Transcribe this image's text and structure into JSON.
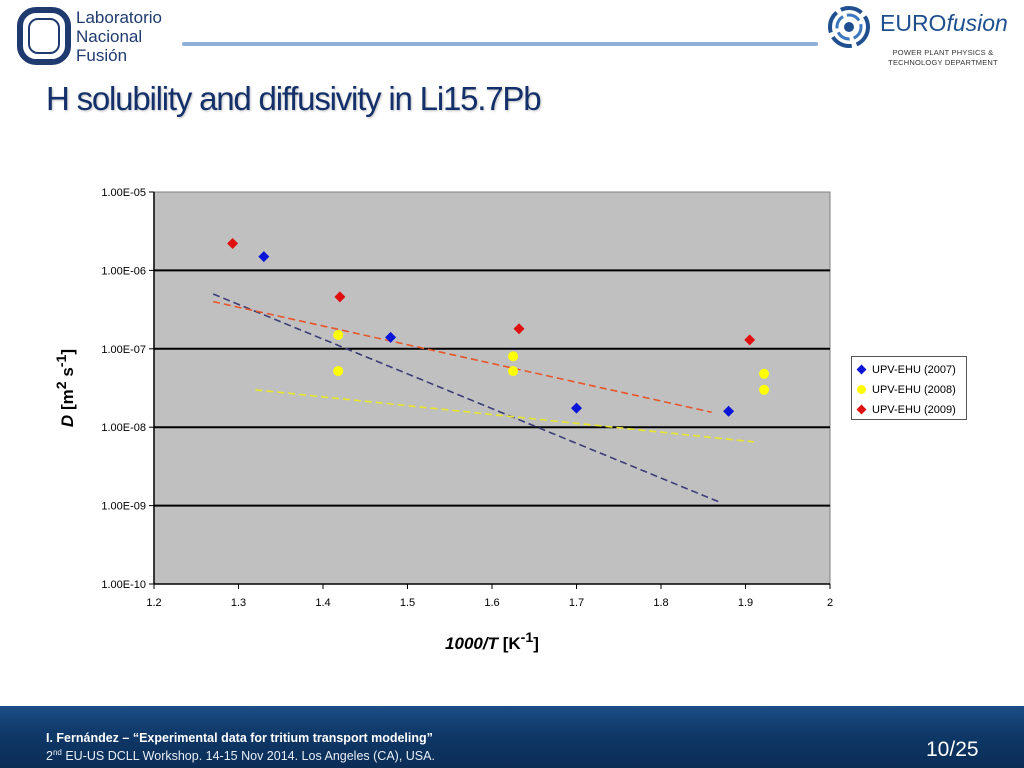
{
  "header": {
    "left_logo": {
      "line1": "Laboratorio",
      "line2": "Nacional",
      "line3": "Fusión"
    },
    "right_logo": {
      "brand_euro": "EURO",
      "brand_fusion": "fusion",
      "dept_line1": "POWER PLANT PHYSICS &",
      "dept_line2": "TECHNOLOGY DEPARTMENT"
    }
  },
  "slide": {
    "title": "H solubility and diffusivity in Li15.7Pb"
  },
  "chart_data": {
    "type": "scatter",
    "title": "",
    "xlabel_var": "1000/T",
    "xlabel_unit": "[K",
    "xlabel_exp": "-1",
    "xlabel_close": "]",
    "ylabel_var": "D",
    "ylabel_unit_open": "[m",
    "ylabel_exp1": "2",
    "ylabel_mid": " s",
    "ylabel_exp2": "-1",
    "ylabel_close": "]",
    "xlim": [
      1.2,
      2.0
    ],
    "ylim": [
      1e-10,
      1e-05
    ],
    "yscale": "log",
    "grid": "horizontal",
    "plot_background": "#c0c0c0",
    "legend_position": "right",
    "x_ticks": [
      "1.2",
      "1.3",
      "1.4",
      "1.5",
      "1.6",
      "1.7",
      "1.8",
      "1.9",
      "2"
    ],
    "y_ticks": [
      "1.00E-10",
      "1.00E-09",
      "1.00E-08",
      "1.00E-07",
      "1.00E-06",
      "1.00E-05"
    ],
    "series": [
      {
        "name": "UPV-EHU (2007)",
        "marker": "diamond",
        "color": "#0a14d8",
        "points": [
          [
            1.33,
            1.5e-06
          ],
          [
            1.48,
            1.4e-07
          ],
          [
            1.7,
            1.75e-08
          ],
          [
            1.88,
            1.6e-08
          ]
        ],
        "trendline": {
          "from": [
            1.27,
            5e-07
          ],
          "to": [
            1.87,
            1.1e-09
          ],
          "color": "#3c3c78"
        }
      },
      {
        "name": "UPV-EHU (2008)",
        "marker": "circle",
        "color": "#ffff00",
        "points": [
          [
            1.418,
            1.5e-07
          ],
          [
            1.418,
            5.2e-08
          ],
          [
            1.625,
            8e-08
          ],
          [
            1.625,
            5.2e-08
          ],
          [
            1.922,
            4.8e-08
          ],
          [
            1.922,
            3e-08
          ]
        ],
        "trendline": {
          "from": [
            1.32,
            3e-08
          ],
          "to": [
            1.91,
            6.5e-09
          ],
          "color": "#e6e62a"
        }
      },
      {
        "name": "UPV-EHU (2009)",
        "marker": "diamond",
        "color": "#e01010",
        "points": [
          [
            1.293,
            2.2e-06
          ],
          [
            1.42,
            4.6e-07
          ],
          [
            1.632,
            1.8e-07
          ],
          [
            1.905,
            1.3e-07
          ]
        ],
        "trendline": {
          "from": [
            1.27,
            4e-07
          ],
          "to": [
            1.86,
            1.55e-08
          ],
          "color": "#e8552a"
        }
      }
    ]
  },
  "footer": {
    "author": "I. Fernández – ",
    "talk_title": "“Experimental data for tritium transport modeling”",
    "event_ordinal": "2",
    "event_ordinal_suffix": "nd",
    "event_rest": " EU-US DCLL Workshop. 14-15 Nov 2014. Los Angeles (CA), USA.",
    "page_number": "10/25"
  }
}
